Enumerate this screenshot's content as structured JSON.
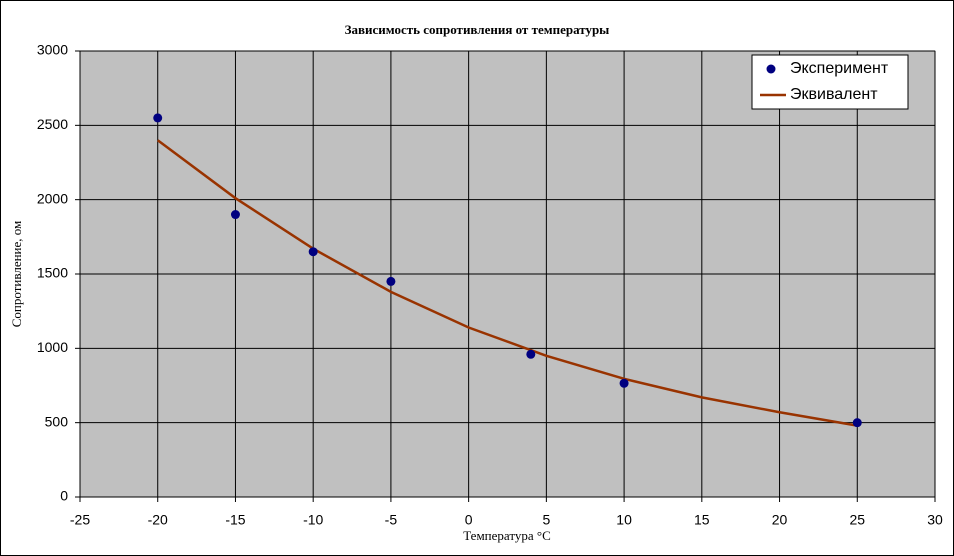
{
  "chart_data": {
    "type": "scatter",
    "title": "Зависимость сопротивления от температуры",
    "x_label": "Температура °C",
    "y_label": "Сопротивление, ом",
    "xlim": [
      -25,
      30
    ],
    "xticks": [
      -25,
      -20,
      -15,
      -10,
      -5,
      0,
      5,
      10,
      15,
      20,
      25,
      30
    ],
    "ylim": [
      0,
      3000
    ],
    "yticks": [
      0,
      500,
      1000,
      1500,
      2000,
      2500,
      3000
    ],
    "grid": true,
    "legend": "top-right",
    "series": [
      {
        "name": "Эксперимент",
        "type": "scatter",
        "color": "#000080",
        "x": [
          -20,
          -15,
          -10,
          -5,
          4,
          10,
          25
        ],
        "values": [
          2550,
          1900,
          1650,
          1450,
          960,
          765,
          500
        ]
      },
      {
        "name": "Эквивалент",
        "type": "line",
        "color": "#993300",
        "x": [
          -20,
          -15,
          -10,
          -5,
          0,
          5,
          10,
          15,
          20,
          25
        ],
        "values": [
          2400,
          2010,
          1670,
          1380,
          1140,
          950,
          795,
          670,
          570,
          480
        ]
      }
    ]
  }
}
